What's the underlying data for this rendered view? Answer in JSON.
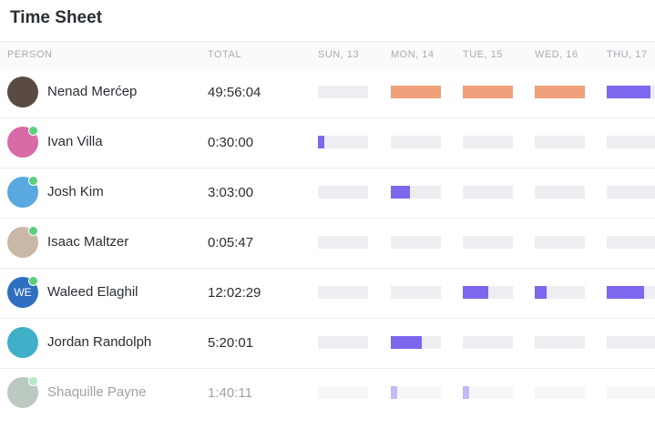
{
  "header": {
    "title": "Time Sheet"
  },
  "table": {
    "columns": [
      "PERSON",
      "TOTAL",
      "SUN, 13",
      "MON, 14",
      "TUE, 15",
      "WED, 16",
      "THU, 17"
    ],
    "rows": [
      {
        "name": "Nenad Merćep",
        "total": "49:56:04",
        "avatar": "#5a4a44",
        "online": false,
        "days": [
          {
            "fill": 0,
            "color": "#7b68ee"
          },
          {
            "fill": 1,
            "color": "#f0a07a"
          },
          {
            "fill": 1,
            "color": "#f0a07a"
          },
          {
            "fill": 1,
            "color": "#f0a07a"
          },
          {
            "fill": 0.88,
            "color": "#7b68ee"
          }
        ]
      },
      {
        "name": "Ivan Villa",
        "total": "0:30:00",
        "avatar": "#d86aa8",
        "online": true,
        "days": [
          {
            "fill": 0.13,
            "color": "#7b68ee"
          },
          {
            "fill": 0,
            "color": "#7b68ee"
          },
          {
            "fill": 0,
            "color": "#7b68ee"
          },
          {
            "fill": 0,
            "color": "#7b68ee"
          },
          {
            "fill": 0,
            "color": "#7b68ee"
          }
        ]
      },
      {
        "name": "Josh Kim",
        "total": "3:03:00",
        "avatar": "#5aa8e0",
        "online": true,
        "days": [
          {
            "fill": 0,
            "color": "#7b68ee"
          },
          {
            "fill": 0.38,
            "color": "#7b68ee"
          },
          {
            "fill": 0,
            "color": "#7b68ee"
          },
          {
            "fill": 0,
            "color": "#7b68ee"
          },
          {
            "fill": 0,
            "color": "#7b68ee"
          }
        ]
      },
      {
        "name": "Isaac Maltzer",
        "total": "0:05:47",
        "avatar": "#c9b8a6",
        "online": true,
        "days": [
          {
            "fill": 0,
            "color": "#7b68ee"
          },
          {
            "fill": 0,
            "color": "#7b68ee"
          },
          {
            "fill": 0,
            "color": "#7b68ee"
          },
          {
            "fill": 0,
            "color": "#7b68ee"
          },
          {
            "fill": 0,
            "color": "#7b68ee"
          }
        ]
      },
      {
        "name": "Waleed Elaghil",
        "total": "12:02:29",
        "avatar": "#2f6fc0",
        "initials": "WE",
        "online": true,
        "days": [
          {
            "fill": 0,
            "color": "#7b68ee"
          },
          {
            "fill": 0,
            "color": "#7b68ee"
          },
          {
            "fill": 0.5,
            "color": "#7b68ee"
          },
          {
            "fill": 0.24,
            "color": "#7b68ee"
          },
          {
            "fill": 0.75,
            "color": "#7b68ee"
          }
        ]
      },
      {
        "name": "Jordan Randolph",
        "total": "5:20:01",
        "avatar": "#3fb0c8",
        "online": false,
        "days": [
          {
            "fill": 0,
            "color": "#7b68ee"
          },
          {
            "fill": 0.62,
            "color": "#7b68ee"
          },
          {
            "fill": 0,
            "color": "#7b68ee"
          },
          {
            "fill": 0,
            "color": "#7b68ee"
          },
          {
            "fill": 0,
            "color": "#7b68ee"
          }
        ]
      },
      {
        "name": "Shaquille Payne",
        "total": "1:40:11",
        "avatar": "#6a8a78",
        "online": true,
        "days": [
          {
            "fill": 0,
            "color": "#7b68ee"
          },
          {
            "fill": 0.13,
            "color": "#7b68ee"
          },
          {
            "fill": 0.13,
            "color": "#7b68ee"
          },
          {
            "fill": 0,
            "color": "#7b68ee"
          },
          {
            "fill": 0,
            "color": "#7b68ee"
          }
        ]
      }
    ]
  }
}
